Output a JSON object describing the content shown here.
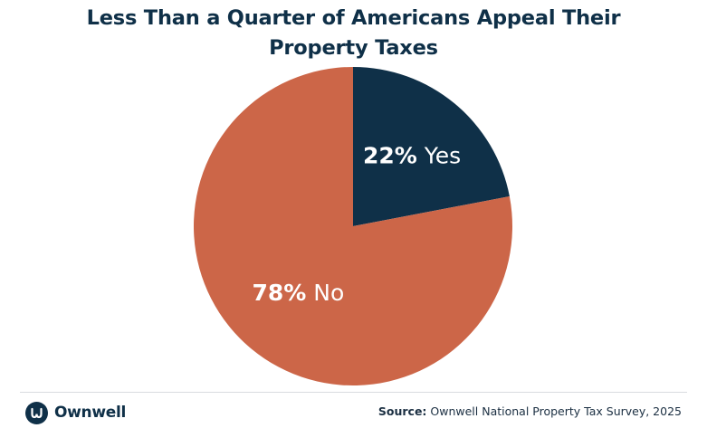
{
  "title_lines": [
    "Less Than a Quarter of Americans Appeal Their",
    "Property Taxes"
  ],
  "colors": {
    "title": "#0f3048",
    "yes_slice": "#0f3048",
    "no_slice": "#cc6648",
    "label": "#ffffff"
  },
  "chart_data": {
    "type": "pie",
    "title": "Less Than a Quarter of Americans Appeal Their Property Taxes",
    "slices": [
      {
        "label": "Yes",
        "value": 22,
        "text": "22% Yes",
        "pct": "22%",
        "name": " Yes",
        "color": "#0f3048"
      },
      {
        "label": "No",
        "value": 78,
        "text": "78% No",
        "pct": "78%",
        "name": " No",
        "color": "#cc6648"
      }
    ],
    "start_angle": "12 o'clock",
    "direction": "clockwise"
  },
  "footer": {
    "logo_text": "Ownwell",
    "logo_icon": "ownwell-logo-icon",
    "source_label": "Source:",
    "source_text": " Ownwell National Property Tax Survey, 2025"
  }
}
